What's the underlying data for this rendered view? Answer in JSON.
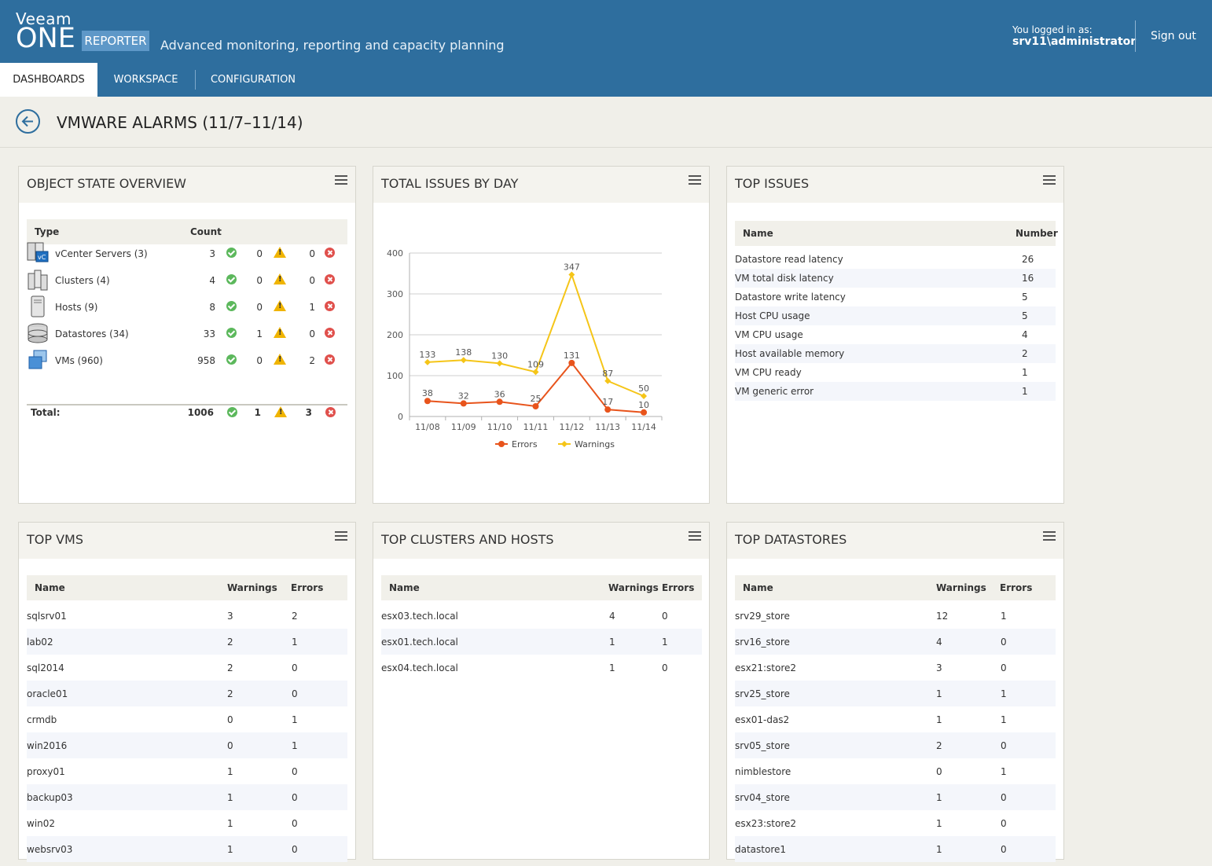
{
  "header": {
    "brand_top": "Veeam",
    "brand_main": "ONE",
    "brand_product": "REPORTER",
    "subtitle": "Advanced monitoring, reporting and capacity planning",
    "logged_label": "You logged in as:",
    "user": "srv11\\administrator",
    "signout": "Sign out"
  },
  "nav": {
    "tabs": [
      "DASHBOARDS",
      "WORKSPACE",
      "CONFIGURATION"
    ],
    "active": "DASHBOARDS"
  },
  "page": {
    "title": "VMWARE ALARMS (11/7–11/14)"
  },
  "object_state": {
    "title": "OBJECT STATE OVERVIEW",
    "headers": {
      "type": "Type",
      "count": "Count"
    },
    "rows": [
      {
        "icon": "vcenter-server-icon",
        "label": "vCenter Servers (3)",
        "ok": "3",
        "warn": "0",
        "err": "0"
      },
      {
        "icon": "cluster-icon",
        "label": "Clusters (4)",
        "ok": "4",
        "warn": "0",
        "err": "0"
      },
      {
        "icon": "host-icon",
        "label": "Hosts (9)",
        "ok": "8",
        "warn": "0",
        "err": "1"
      },
      {
        "icon": "datastore-icon",
        "label": "Datastores (34)",
        "ok": "33",
        "warn": "1",
        "err": "0"
      },
      {
        "icon": "vm-icon",
        "label": "VMs (960)",
        "ok": "958",
        "warn": "0",
        "err": "2"
      }
    ],
    "total": {
      "label": "Total:",
      "ok": "1006",
      "warn": "1",
      "err": "3"
    }
  },
  "total_issues": {
    "title": "TOTAL ISSUES BY DAY",
    "chart_data": {
      "type": "line",
      "categories": [
        "11/08",
        "11/09",
        "11/10",
        "11/11",
        "11/12",
        "11/13",
        "11/14"
      ],
      "series": [
        {
          "name": "Errors",
          "color": "#e8541c",
          "values": [
            38,
            32,
            36,
            25,
            131,
            17,
            10
          ]
        },
        {
          "name": "Warnings",
          "color": "#f5c518",
          "values": [
            133,
            138,
            130,
            109,
            347,
            87,
            50
          ]
        }
      ],
      "ylim": [
        0,
        400
      ],
      "yticks": [
        0,
        100,
        200,
        300,
        400
      ],
      "grid": true,
      "legend": "bottom"
    }
  },
  "top_issues": {
    "title": "TOP ISSUES",
    "headers": {
      "name": "Name",
      "number": "Number"
    },
    "rows": [
      {
        "name": "Datastore read latency",
        "number": "26"
      },
      {
        "name": "VM total disk latency",
        "number": "16"
      },
      {
        "name": "Datastore write latency",
        "number": "5"
      },
      {
        "name": "Host CPU usage",
        "number": "5"
      },
      {
        "name": "VM CPU usage",
        "number": "4"
      },
      {
        "name": "Host available memory",
        "number": "2"
      },
      {
        "name": "VM CPU ready",
        "number": "1"
      },
      {
        "name": "VM generic error",
        "number": "1"
      }
    ]
  },
  "top_vms": {
    "title": "TOP VMS",
    "headers": {
      "name": "Name",
      "warnings": "Warnings",
      "errors": "Errors"
    },
    "rows": [
      {
        "name": "sqlsrv01",
        "warnings": "3",
        "errors": "2"
      },
      {
        "name": "lab02",
        "warnings": "2",
        "errors": "1"
      },
      {
        "name": "sql2014",
        "warnings": "2",
        "errors": "0"
      },
      {
        "name": "oracle01",
        "warnings": "2",
        "errors": "0"
      },
      {
        "name": "crmdb",
        "warnings": "0",
        "errors": "1"
      },
      {
        "name": "win2016",
        "warnings": "0",
        "errors": "1"
      },
      {
        "name": "proxy01",
        "warnings": "1",
        "errors": "0"
      },
      {
        "name": "backup03",
        "warnings": "1",
        "errors": "0"
      },
      {
        "name": "win02",
        "warnings": "1",
        "errors": "0"
      },
      {
        "name": "websrv03",
        "warnings": "1",
        "errors": "0"
      }
    ]
  },
  "top_clusters": {
    "title": "TOP CLUSTERS AND HOSTS",
    "headers": {
      "name": "Name",
      "warnings": "Warnings",
      "errors": "Errors"
    },
    "rows": [
      {
        "name": "esx03.tech.local",
        "warnings": "4",
        "errors": "0"
      },
      {
        "name": "esx01.tech.local",
        "warnings": "1",
        "errors": "1"
      },
      {
        "name": "esx04.tech.local",
        "warnings": "1",
        "errors": "0"
      }
    ]
  },
  "top_datastores": {
    "title": "TOP DATASTORES",
    "headers": {
      "name": "Name",
      "warnings": "Warnings",
      "errors": "Errors"
    },
    "rows": [
      {
        "name": "srv29_store",
        "warnings": "12",
        "errors": "1"
      },
      {
        "name": "srv16_store",
        "warnings": "4",
        "errors": "0"
      },
      {
        "name": "esx21:store2",
        "warnings": "3",
        "errors": "0"
      },
      {
        "name": "srv25_store",
        "warnings": "1",
        "errors": "1"
      },
      {
        "name": "esx01-das2",
        "warnings": "1",
        "errors": "1"
      },
      {
        "name": "srv05_store",
        "warnings": "2",
        "errors": "0"
      },
      {
        "name": "nimblestore",
        "warnings": "0",
        "errors": "1"
      },
      {
        "name": "srv04_store",
        "warnings": "1",
        "errors": "0"
      },
      {
        "name": "esx23:store2",
        "warnings": "1",
        "errors": "0"
      },
      {
        "name": "datastore1",
        "warnings": "1",
        "errors": "0"
      }
    ]
  }
}
